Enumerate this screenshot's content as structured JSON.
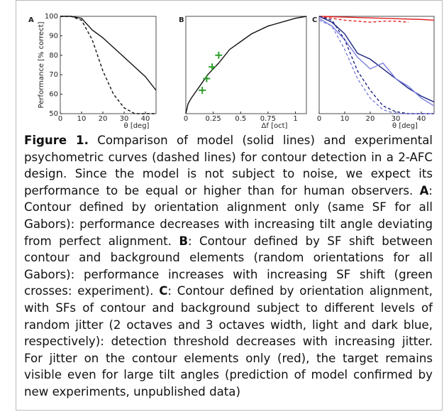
{
  "chart_data": [
    {
      "type": "line",
      "panel": "A",
      "xlabel": "θ [deg]",
      "ylabel": "Performance [% correct]",
      "xlim": [
        0,
        45
      ],
      "ylim": [
        50,
        100
      ],
      "xticks": [
        0,
        10,
        20,
        30,
        40
      ],
      "yticks": [
        50,
        60,
        70,
        80,
        90,
        100
      ],
      "series": [
        {
          "color": "#111111",
          "dash": false,
          "x": [
            0,
            5,
            10,
            15,
            20,
            25,
            30,
            35,
            40,
            45
          ],
          "values": [
            100,
            100,
            99,
            93,
            89,
            84,
            79,
            74,
            69,
            62
          ]
        },
        {
          "color": "#111111",
          "dash": true,
          "x": [
            0,
            5,
            10,
            15,
            20,
            25,
            30,
            35,
            40,
            45
          ],
          "values": [
            100,
            100,
            98,
            88,
            72,
            60,
            53,
            50,
            50,
            50
          ]
        }
      ]
    },
    {
      "type": "line",
      "panel": "B",
      "xlabel": "Δf [oct]",
      "xlim": [
        0,
        1.1
      ],
      "ylim": [
        50,
        100
      ],
      "xticks": [
        0,
        0.25,
        0.5,
        0.75,
        1
      ],
      "series": [
        {
          "color": "#111111",
          "dash": false,
          "x": [
            0,
            0.02,
            0.05,
            0.1,
            0.15,
            0.2,
            0.3,
            0.4,
            0.5,
            0.6,
            0.75,
            1,
            1.1
          ],
          "values": [
            50,
            55,
            58,
            62,
            66,
            70,
            76,
            83,
            87,
            91,
            95,
            99,
            100
          ]
        },
        {
          "color": "#2ca02c",
          "marker": "+",
          "x": [
            0.15,
            0.19,
            0.24,
            0.3
          ],
          "values": [
            62,
            68,
            74,
            80
          ]
        }
      ]
    },
    {
      "type": "line",
      "panel": "C",
      "xlabel": "θ [deg]",
      "xlim": [
        0,
        45
      ],
      "ylim": [
        50,
        100
      ],
      "xticks": [
        0,
        10,
        20,
        30,
        40
      ],
      "series": [
        {
          "color": "#e02020",
          "dash": false,
          "x": [
            0,
            10,
            20,
            30,
            40,
            45
          ],
          "values": [
            100,
            99.6,
            99.2,
            98.8,
            98.4,
            98
          ]
        },
        {
          "color": "#e02020",
          "dash": true,
          "x": [
            0,
            5,
            10,
            15,
            20,
            25,
            30,
            35
          ],
          "values": [
            100,
            99,
            98,
            97.5,
            97,
            97.5,
            97.5,
            97
          ]
        },
        {
          "color": "#1a237e",
          "dash": false,
          "x": [
            0,
            5,
            10,
            15,
            20,
            25,
            30,
            35,
            40,
            45
          ],
          "values": [
            100,
            97,
            91,
            81,
            78,
            73,
            68,
            63,
            59,
            56
          ]
        },
        {
          "color": "#7b7fe0",
          "dash": false,
          "x": [
            0,
            5,
            10,
            15,
            20,
            25,
            30,
            35,
            40,
            45
          ],
          "values": [
            99,
            95,
            88,
            79,
            73,
            76,
            68,
            64,
            58,
            54
          ]
        },
        {
          "color": "#1a237e",
          "dash": true,
          "x": [
            0,
            5,
            10,
            15,
            20,
            25,
            30,
            35,
            40,
            45
          ],
          "values": [
            100,
            98,
            88,
            72,
            62,
            54,
            51,
            50,
            50,
            50
          ]
        },
        {
          "color": "#7b7fe0",
          "dash": true,
          "x": [
            0,
            5,
            10,
            15,
            20,
            25,
            30,
            35,
            40,
            45
          ],
          "values": [
            98,
            95,
            83,
            68,
            58,
            52,
            50,
            50,
            50,
            50
          ]
        }
      ]
    }
  ],
  "caption": {
    "label": "Figure 1.",
    "text": "Comparison of model (solid lines) and experimental psychometric curves (dashed lines) for contour detection in a 2-AFC design. Since the model is not subject to noise, we expect its performance to be equal or higher than for human observers.",
    "parts": [
      {
        "label": "A",
        "text": ": Contour defined by orientation alignment only (same SF for all Gabors): performance decreases with increasing tilt angle deviating from perfect alignment."
      },
      {
        "label": "B",
        "text": ": Contour defined by SF shift between contour and background elements (random orientations for all Gabors): performance increases with increasing SF shift (green crosses: experiment)."
      },
      {
        "label": "C",
        "text": ": Contour defined by orientation alignment, with SFs of contour and background subject to different levels of random jitter (2 octaves and 3 octaves width, light and dark blue, respectively): detection threshold decreases with increasing jitter. For jitter on the contour elements only (red), the target remains visible even for large tilt angles (prediction of model confirmed by new experiments, unpublished data)"
      }
    ]
  }
}
